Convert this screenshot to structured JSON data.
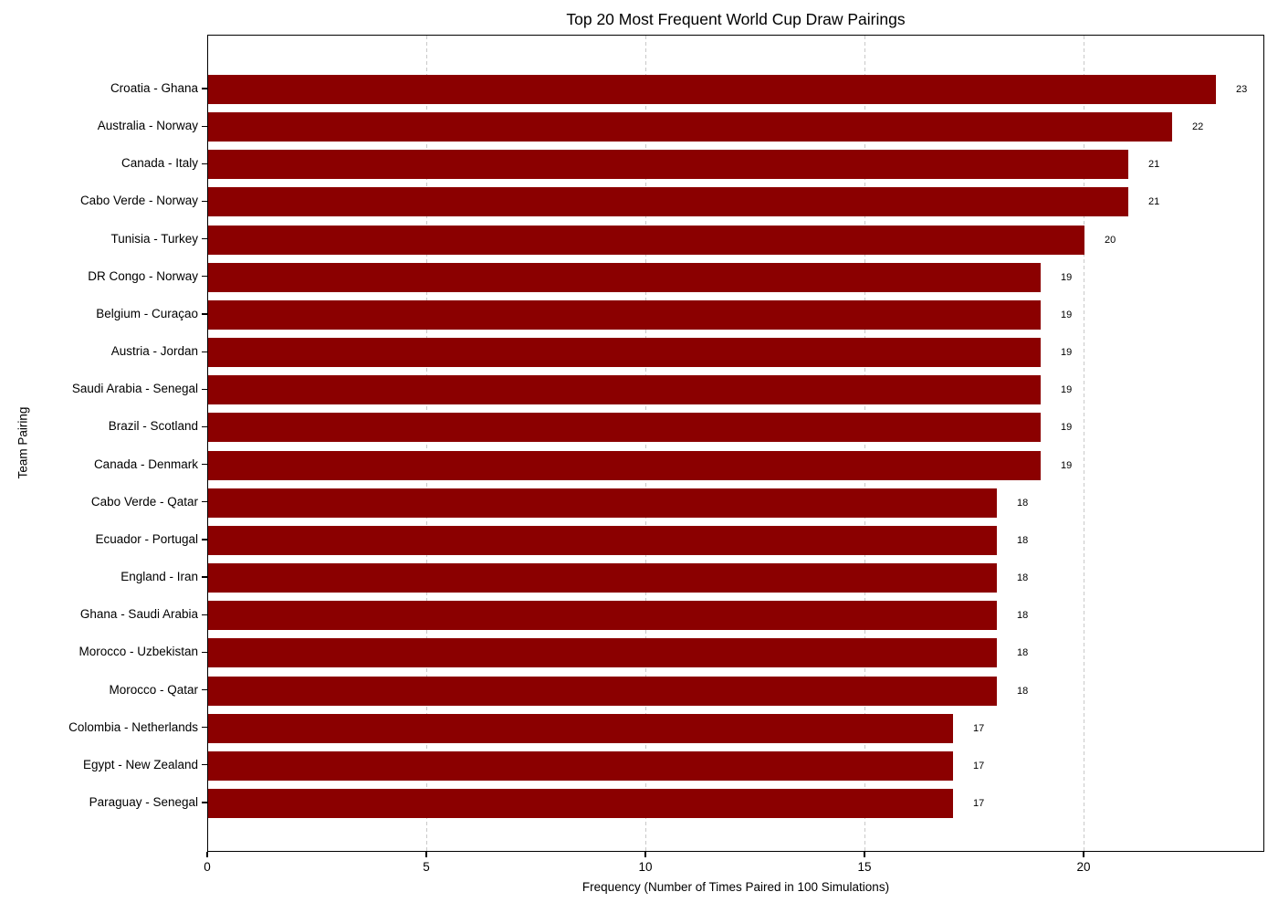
{
  "chart_data": {
    "type": "bar",
    "orientation": "horizontal",
    "title": "Top 20 Most Frequent World Cup Draw Pairings",
    "xlabel": "Frequency (Number of Times Paired in 100 Simulations)",
    "ylabel": "Team Pairing",
    "categories": [
      "Croatia - Ghana",
      "Australia - Norway",
      "Canada - Italy",
      "Cabo Verde - Norway",
      "Tunisia - Turkey",
      "DR Congo - Norway",
      "Belgium - Curaçao",
      "Austria - Jordan",
      "Saudi Arabia - Senegal",
      "Brazil - Scotland",
      "Canada - Denmark",
      "Cabo Verde - Qatar",
      "Ecuador - Portugal",
      "England - Iran",
      "Ghana - Saudi Arabia",
      "Morocco - Uzbekistan",
      "Morocco - Qatar",
      "Colombia - Netherlands",
      "Egypt - New Zealand",
      "Paraguay - Senegal"
    ],
    "values": [
      23,
      22,
      21,
      21,
      20,
      19,
      19,
      19,
      19,
      19,
      19,
      18,
      18,
      18,
      18,
      18,
      18,
      17,
      17,
      17
    ],
    "value_labels": [
      23,
      22,
      21,
      21,
      20,
      19,
      19,
      19,
      19,
      19,
      19,
      18,
      18,
      18,
      18,
      18,
      18,
      17,
      17,
      17
    ],
    "xticks": [
      0,
      5,
      10,
      15,
      20
    ],
    "xlim": [
      0,
      24.15
    ],
    "grid": {
      "axis": "x",
      "style": "dashed",
      "color": "#c9c9c9"
    },
    "legend": null,
    "bar_color": "#8B0000",
    "background_color": "#ffffff",
    "axis_color": "#000000"
  }
}
